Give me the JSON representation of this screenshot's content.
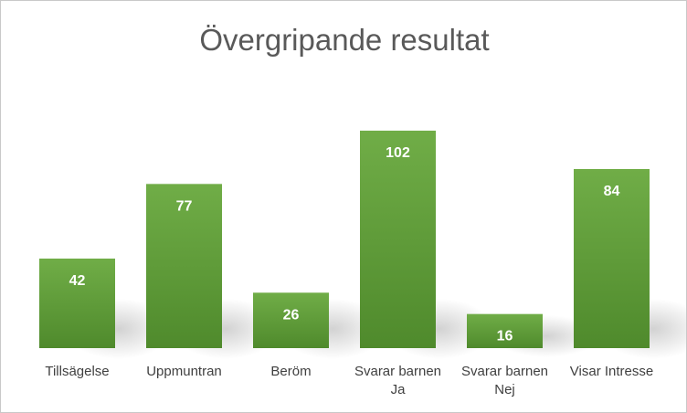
{
  "chart_data": {
    "type": "bar",
    "title": "Övergripande resultat",
    "categories": [
      [
        "Tillsägelse"
      ],
      [
        "Uppmuntran"
      ],
      [
        "Beröm"
      ],
      [
        "Svarar barnen",
        "Ja"
      ],
      [
        "Svarar barnen",
        "Nej"
      ],
      [
        "Visar Intresse"
      ]
    ],
    "values": [
      42,
      77,
      26,
      102,
      16,
      84
    ],
    "xlabel": "",
    "ylabel": "",
    "ylim": [
      0,
      120
    ],
    "grid": false,
    "legend": "none",
    "colors": {
      "bar_top": "#70ad47",
      "bar_bottom": "#4f8a2c",
      "label": "#ffffff"
    }
  }
}
